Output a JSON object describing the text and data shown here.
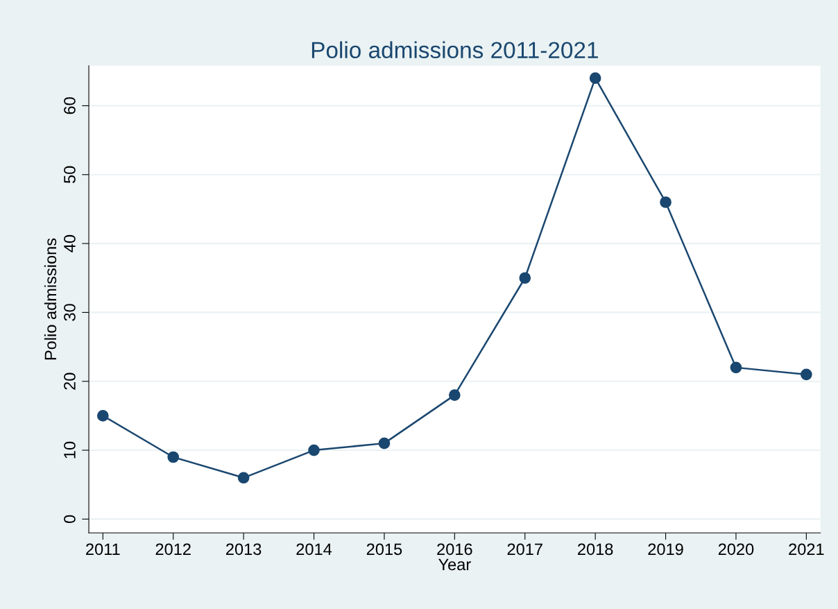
{
  "chart_data": {
    "type": "line",
    "title": "Polio admissions 2011-2021",
    "xlabel": "Year",
    "ylabel": "Polio admissions",
    "x": [
      2011,
      2012,
      2013,
      2014,
      2015,
      2016,
      2017,
      2018,
      2019,
      2020,
      2021
    ],
    "series": [
      {
        "color": "#1a476f",
        "values": [
          15,
          9,
          6,
          10,
          11,
          18,
          35,
          64,
          46,
          22,
          21
        ]
      }
    ],
    "xlim": [
      2010.8,
      2021.2
    ],
    "xticks": [
      2011,
      2012,
      2013,
      2014,
      2015,
      2016,
      2017,
      2018,
      2019,
      2020,
      2021
    ],
    "ylim": [
      -2,
      65.8
    ],
    "yticks": [
      0,
      10,
      20,
      30,
      40,
      50,
      60
    ],
    "grid": "y",
    "marker": "circle",
    "line_style": "solid"
  }
}
